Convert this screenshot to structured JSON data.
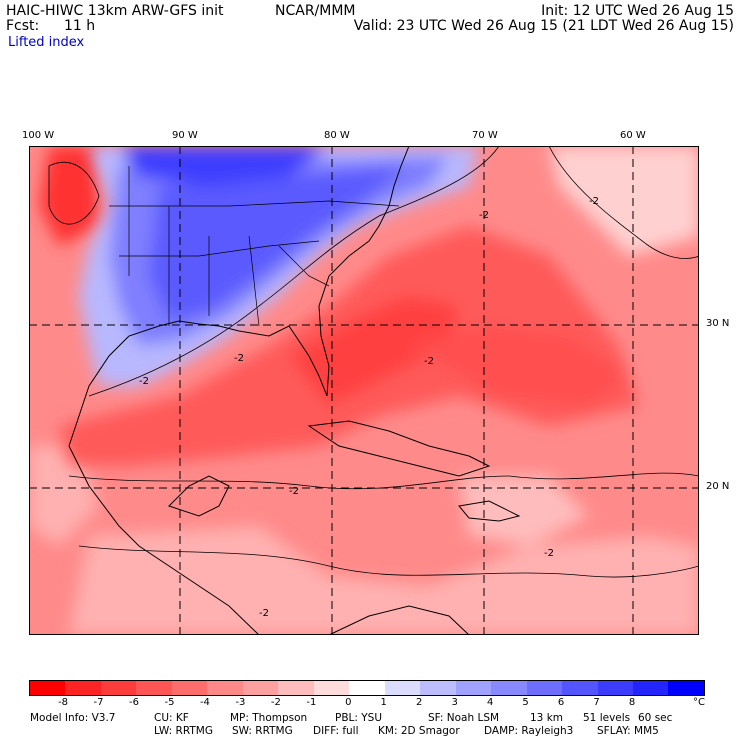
{
  "header": {
    "model": "HAIC-HIWC 13km ARW-GFS init",
    "org": "NCAR/MMM",
    "init": "Init: 12 UTC Wed 26 Aug 15",
    "fcst_label": "Fcst:",
    "fcst_value": "11 h",
    "valid": "Valid: 23 UTC Wed 26 Aug 15 (21 LDT Wed 26 Aug 15)"
  },
  "field_name": "Lifted index",
  "map": {
    "lon_labels": [
      "100 W",
      "90 W",
      "80 W",
      "70 W",
      "60 W"
    ],
    "lat_labels": [
      "30 N",
      "20 N"
    ],
    "contour_labels": [
      "-2",
      "-2",
      "-2",
      "-2",
      "-2",
      "-2",
      "-2",
      "-2"
    ]
  },
  "colorbar": {
    "unit": "°C",
    "ticks": [
      "-8",
      "-7",
      "-6",
      "-5",
      "-4",
      "-3",
      "-2",
      "-1",
      "0",
      "1",
      "2",
      "3",
      "4",
      "5",
      "6",
      "7",
      "8"
    ],
    "colors": [
      "#ff0000",
      "#ff2424",
      "#ff3c3c",
      "#ff5555",
      "#ff6d6d",
      "#ff8888",
      "#ffa0a0",
      "#ffbcbc",
      "#ffdcdc",
      "#ffffff",
      "#dcdcff",
      "#bcbcff",
      "#a0a0ff",
      "#8888ff",
      "#6d6dff",
      "#5555ff",
      "#3c3cff",
      "#2424ff",
      "#0000ff"
    ]
  },
  "footer": {
    "line1": [
      "Model Info: V3.7",
      "CU: KF",
      "MP: Thompson",
      "PBL: YSU",
      "SF: Noah LSM",
      "13 km",
      "51 levels",
      "60 sec"
    ],
    "line2": [
      "LW: RRTMG",
      "SW: RRTMG",
      "DIFF: full",
      "KM: 2D Smagor",
      "DAMP: Rayleigh3",
      "SFLAY: MM5"
    ]
  }
}
